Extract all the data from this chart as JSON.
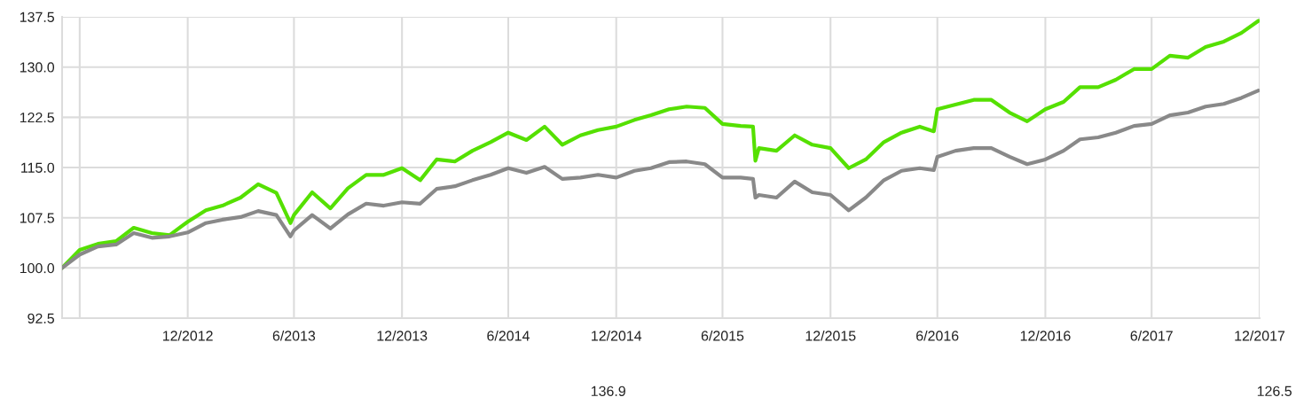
{
  "chart_data": {
    "type": "line",
    "x": [
      "2012-05-31",
      "2012-06-30",
      "2012-07-31",
      "2012-08-31",
      "2012-09-30",
      "2012-10-31",
      "2012-11-30",
      "2012-12-31",
      "2013-01-31",
      "2013-02-28",
      "2013-03-31",
      "2013-04-30",
      "2013-05-31",
      "2013-06-24",
      "2013-06-30",
      "2013-07-31",
      "2013-08-31",
      "2013-09-30",
      "2013-10-31",
      "2013-11-30",
      "2013-12-31",
      "2014-01-31",
      "2014-02-28",
      "2014-03-31",
      "2014-04-30",
      "2014-05-31",
      "2014-06-30",
      "2014-07-31",
      "2014-08-31",
      "2014-09-30",
      "2014-10-31",
      "2014-11-30",
      "2014-12-31",
      "2015-01-31",
      "2015-02-28",
      "2015-03-31",
      "2015-04-30",
      "2015-05-31",
      "2015-06-30",
      "2015-07-31",
      "2015-08-21",
      "2015-08-25",
      "2015-08-31",
      "2015-09-30",
      "2015-10-31",
      "2015-11-30",
      "2015-12-31",
      "2016-01-31",
      "2016-02-29",
      "2016-03-31",
      "2016-04-30",
      "2016-05-31",
      "2016-06-24",
      "2016-06-30",
      "2016-07-31",
      "2016-08-31",
      "2016-09-30",
      "2016-10-31",
      "2016-11-30",
      "2016-12-31",
      "2017-01-31",
      "2017-02-28",
      "2017-03-31",
      "2017-04-30",
      "2017-05-31",
      "2017-06-30",
      "2017-07-31",
      "2017-08-31",
      "2017-09-30",
      "2017-10-31",
      "2017-11-30",
      "2017-12-29"
    ],
    "series": [
      {
        "color": "#55e000",
        "values": [
          100.0,
          102.7,
          103.6,
          104.0,
          106.0,
          105.2,
          104.9,
          106.9,
          108.6,
          109.3,
          110.5,
          112.5,
          111.2,
          106.7,
          107.9,
          111.3,
          108.9,
          111.9,
          113.9,
          113.9,
          114.9,
          113.1,
          116.2,
          115.9,
          117.5,
          118.8,
          120.2,
          119.1,
          121.1,
          118.4,
          119.8,
          120.6,
          121.1,
          122.1,
          122.8,
          123.7,
          124.1,
          123.9,
          121.5,
          121.2,
          121.1,
          116.0,
          117.9,
          117.5,
          119.8,
          118.4,
          117.9,
          114.9,
          116.2,
          118.8,
          120.2,
          121.1,
          120.4,
          123.7,
          124.4,
          125.1,
          125.1,
          123.2,
          121.9,
          123.7,
          124.8,
          127.0,
          127.0,
          128.1,
          129.7,
          129.7,
          131.7,
          131.4,
          133.0,
          133.8,
          135.1,
          136.9
        ]
      },
      {
        "color": "#898989",
        "values": [
          100.0,
          102.0,
          103.2,
          103.5,
          105.2,
          104.5,
          104.7,
          105.3,
          106.7,
          107.2,
          107.6,
          108.5,
          107.9,
          104.7,
          105.6,
          107.9,
          105.9,
          108.0,
          109.6,
          109.3,
          109.8,
          109.6,
          111.8,
          112.2,
          113.1,
          113.9,
          114.9,
          114.2,
          115.1,
          113.3,
          113.5,
          113.9,
          113.5,
          114.5,
          114.9,
          115.8,
          115.9,
          115.5,
          113.5,
          113.5,
          113.3,
          110.5,
          110.9,
          110.5,
          112.9,
          111.3,
          110.9,
          108.6,
          110.5,
          113.1,
          114.5,
          114.9,
          114.6,
          116.6,
          117.5,
          117.9,
          117.9,
          116.6,
          115.5,
          116.2,
          117.5,
          119.2,
          119.5,
          120.2,
          121.2,
          121.5,
          122.8,
          123.2,
          124.1,
          124.5,
          125.4,
          126.5
        ]
      }
    ],
    "xlim": [
      "2012-05-31",
      "2017-12-31"
    ],
    "xticks": [
      {
        "value": "2012-06-30",
        "label": null
      },
      {
        "value": "2012-12-31",
        "label": "12/2012"
      },
      {
        "value": "2013-06-30",
        "label": "6/2013"
      },
      {
        "value": "2013-12-31",
        "label": "12/2013"
      },
      {
        "value": "2014-06-30",
        "label": "6/2014"
      },
      {
        "value": "2014-12-31",
        "label": "12/2014"
      },
      {
        "value": "2015-06-30",
        "label": "6/2015"
      },
      {
        "value": "2015-12-31",
        "label": "12/2015"
      },
      {
        "value": "2016-06-30",
        "label": "6/2016"
      },
      {
        "value": "2016-12-31",
        "label": "12/2016"
      },
      {
        "value": "2017-06-30",
        "label": "6/2017"
      },
      {
        "value": "2017-12-31",
        "label": "12/2017"
      }
    ],
    "ylim": [
      92.5,
      137.5
    ],
    "yticks": [
      {
        "value": 92.5,
        "label": "92.5"
      },
      {
        "value": 100,
        "label": "100.0"
      },
      {
        "value": 107.5,
        "label": "107.5"
      },
      {
        "value": 115,
        "label": "115.0"
      },
      {
        "value": 122.5,
        "label": "122.5"
      },
      {
        "value": 130,
        "label": "130.0"
      },
      {
        "value": 137.5,
        "label": "137.5"
      }
    ],
    "grid": true,
    "annotations": [
      "136.9",
      "126.5"
    ]
  }
}
